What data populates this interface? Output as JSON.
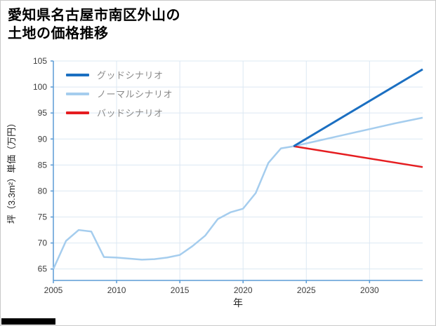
{
  "title": {
    "line1": "愛知県名古屋市南区外山の",
    "line2": "土地の価格推移"
  },
  "chart_data": {
    "type": "line",
    "title": "愛知県名古屋市南区外山の土地の価格推移",
    "xlabel": "年",
    "ylabel": "坪（3.3m²）単価（万円）",
    "xlim": [
      2005,
      2034.2
    ],
    "ylim": [
      62.8,
      105
    ],
    "xticks": [
      2005,
      2010,
      2015,
      2020,
      2025,
      2030
    ],
    "yticks": [
      65,
      70,
      75,
      80,
      85,
      90,
      95,
      100,
      105
    ],
    "grid": true,
    "legend_position": "top-left",
    "colors": {
      "grid": "#dce8f3",
      "axis": "#5b9bd5",
      "tick_text": "#3c3c3c"
    },
    "series": [
      {
        "name": "グッドシナリオ",
        "color": "#1b6fc1",
        "width": 3,
        "x": [
          2024,
          2034.2
        ],
        "y": [
          88.6,
          103.4
        ]
      },
      {
        "name": "ノーマルシナリオ",
        "color": "#a5cdee",
        "width": 2.5,
        "x": [
          2005,
          2006,
          2007,
          2008,
          2009,
          2010,
          2011,
          2012,
          2013,
          2014,
          2015,
          2016,
          2017,
          2018,
          2019,
          2020,
          2021,
          2022,
          2023,
          2024,
          2026,
          2028,
          2030,
          2032,
          2034.2
        ],
        "y": [
          65.0,
          70.4,
          72.5,
          72.2,
          67.3,
          67.2,
          67.0,
          66.8,
          66.9,
          67.2,
          67.7,
          69.4,
          71.4,
          74.6,
          75.9,
          76.6,
          79.6,
          85.4,
          88.2,
          88.6,
          89.7,
          90.8,
          91.9,
          93.0,
          94.1
        ]
      },
      {
        "name": "バッドシナリオ",
        "color": "#e51d20",
        "width": 2.5,
        "x": [
          2024,
          2034.2
        ],
        "y": [
          88.6,
          84.6
        ]
      }
    ]
  }
}
